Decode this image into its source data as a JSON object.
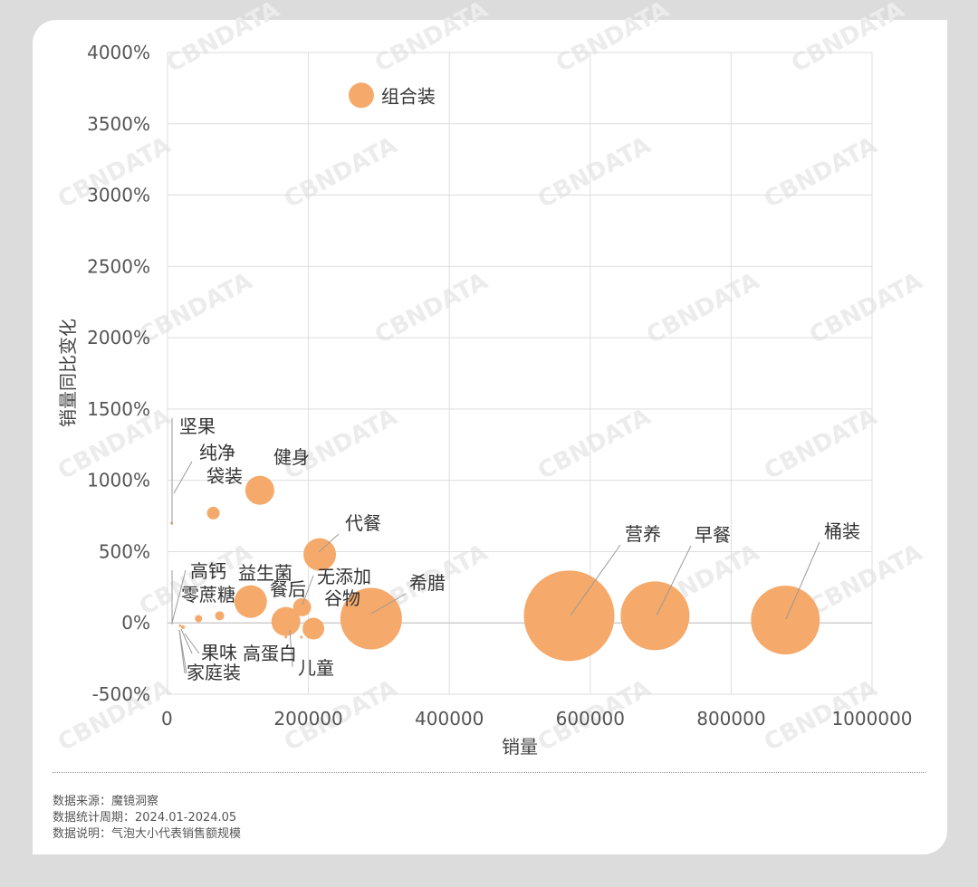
{
  "chart_data": {
    "type": "scatter",
    "xlabel": "销量",
    "ylabel": "销量同比变化",
    "xlim": [
      0,
      1000000
    ],
    "ylim": [
      -500,
      4000
    ],
    "x_ticks": [
      "0",
      "200000",
      "400000",
      "600000",
      "800000",
      "1000000"
    ],
    "y_ticks": [
      "-500%",
      "0%",
      "500%",
      "1000%",
      "1500%",
      "2000%",
      "2500%",
      "3000%",
      "3500%",
      "4000%"
    ],
    "grid": true,
    "legend": "none",
    "bubble_color": "#f5a96a",
    "watermark": "CBNDATA",
    "points": [
      {
        "label": "组合装",
        "x": 275000,
        "y": 3700,
        "size": 14
      },
      {
        "label": "健身",
        "x": 131000,
        "y": 930,
        "size": 16
      },
      {
        "label": "纯净袋装",
        "x": 65000,
        "y": 770,
        "size": 7
      },
      {
        "label": "坚果",
        "x": 6000,
        "y": 700,
        "size": 1
      },
      {
        "label": "代餐",
        "x": 216000,
        "y": 480,
        "size": 18
      },
      {
        "label": "希腊",
        "x": 289000,
        "y": 30,
        "size": 34
      },
      {
        "label": "营养",
        "x": 570000,
        "y": 50,
        "size": 50
      },
      {
        "label": "早餐",
        "x": 692000,
        "y": 50,
        "size": 38
      },
      {
        "label": "桶装",
        "x": 877000,
        "y": 20,
        "size": 38
      },
      {
        "label": "益生菌",
        "x": 118000,
        "y": 150,
        "size": 18
      },
      {
        "label": "餐后",
        "x": 168000,
        "y": 10,
        "size": 16
      },
      {
        "label": "无添加",
        "x": 191000,
        "y": 110,
        "size": 10
      },
      {
        "label": "谷物",
        "x": 207000,
        "y": -40,
        "size": 12
      },
      {
        "label": "高钙",
        "x": 74000,
        "y": 50,
        "size": 5
      },
      {
        "label": "零蔗糖",
        "x": 44000,
        "y": 30,
        "size": 4
      },
      {
        "label": "果味",
        "x": 22000,
        "y": -30,
        "size": 2
      },
      {
        "label": "家庭装",
        "x": 18000,
        "y": -20,
        "size": 1
      },
      {
        "label": "高蛋白",
        "x": 168000,
        "y": -100,
        "size": 1
      },
      {
        "label": "儿童",
        "x": 190000,
        "y": -100,
        "size": 1
      }
    ]
  },
  "footer": {
    "source": "数据来源：魔镜洞察",
    "period": "数据统计周期：2024.01-2024.05",
    "note": "数据说明：气泡大小代表销售额规模"
  }
}
